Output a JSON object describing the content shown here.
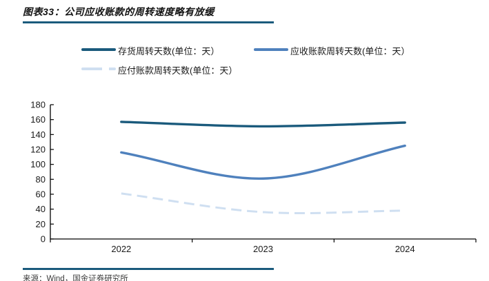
{
  "title": "图表33：公司应收账款的周转速度略有放缓",
  "source": "来源：Wind，国金证券研究所",
  "accent_color": "#1A5A7C",
  "chart_data": {
    "type": "line",
    "categories": [
      "2022",
      "2023",
      "2024"
    ],
    "series": [
      {
        "name": "存货周转天数(单位：天）",
        "values": [
          157,
          151,
          156
        ],
        "color": "#1A5A7C",
        "style": "solid"
      },
      {
        "name": "应收账款周转天数(单位：天）",
        "values": [
          116,
          81,
          125
        ],
        "color": "#4F81BD",
        "style": "solid"
      },
      {
        "name": "应付账款周转天数(单位：天）",
        "values": [
          61,
          36,
          38
        ],
        "color": "#CFDFF1",
        "style": "dashed"
      }
    ],
    "title": "图表33：公司应收账款的周转速度略有放缓",
    "xlabel": "",
    "ylabel": "",
    "ylim": [
      0,
      180
    ],
    "ytick_step": 20,
    "grid": false,
    "legend_position": "top",
    "axis_color": "#000000"
  }
}
